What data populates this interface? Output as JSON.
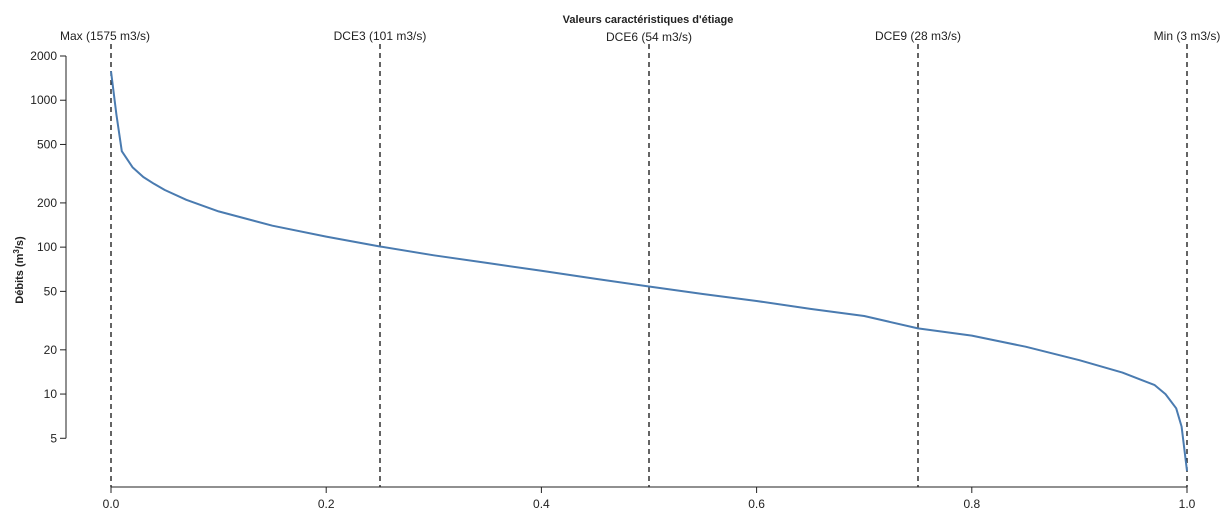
{
  "chart_data": {
    "type": "line",
    "title": "Valeurs caractéristiques d'étiage",
    "xlabel": "",
    "ylabel_parts": [
      "Débits (m",
      "3",
      "/s)"
    ],
    "xlim": [
      0,
      1
    ],
    "ylim": [
      2.6,
      2000
    ],
    "yscale": "log",
    "xticks": [
      {
        "v": 0.0,
        "label": "0.0"
      },
      {
        "v": 0.2,
        "label": "0.2"
      },
      {
        "v": 0.4,
        "label": "0.4"
      },
      {
        "v": 0.6,
        "label": "0.6"
      },
      {
        "v": 0.8,
        "label": "0.8"
      },
      {
        "v": 1.0,
        "label": "1.0"
      }
    ],
    "yticks": [
      {
        "v": 5,
        "label": "5"
      },
      {
        "v": 10,
        "label": "10"
      },
      {
        "v": 20,
        "label": "20"
      },
      {
        "v": 50,
        "label": "50"
      },
      {
        "v": 100,
        "label": "100"
      },
      {
        "v": 200,
        "label": "200"
      },
      {
        "v": 500,
        "label": "500"
      },
      {
        "v": 1000,
        "label": "1000"
      },
      {
        "v": 2000,
        "label": "2000"
      }
    ],
    "reference_lines": [
      {
        "x": 0.0,
        "label": "Max (1575 m3/s)"
      },
      {
        "x": 0.25,
        "label": "DCE3 (101 m3/s)"
      },
      {
        "x": 0.5,
        "label": "DCE6 (54 m3/s)"
      },
      {
        "x": 0.75,
        "label": "DCE9 (28 m3/s)"
      },
      {
        "x": 1.0,
        "label": "Min (3 m3/s)"
      }
    ],
    "series": [
      {
        "color": "#4a7bb0",
        "x": [
          0.0,
          0.005,
          0.01,
          0.02,
          0.03,
          0.04,
          0.05,
          0.07,
          0.1,
          0.15,
          0.2,
          0.25,
          0.3,
          0.35,
          0.4,
          0.45,
          0.5,
          0.55,
          0.6,
          0.65,
          0.7,
          0.75,
          0.8,
          0.85,
          0.9,
          0.94,
          0.97,
          0.98,
          0.99,
          0.995,
          1.0
        ],
        "y": [
          1575,
          800,
          450,
          350,
          300,
          270,
          245,
          210,
          175,
          140,
          118,
          101,
          88,
          78,
          69,
          61,
          54,
          48,
          43,
          38,
          34,
          28,
          25,
          21,
          17,
          14,
          11.5,
          10,
          8,
          6,
          3
        ]
      }
    ]
  }
}
